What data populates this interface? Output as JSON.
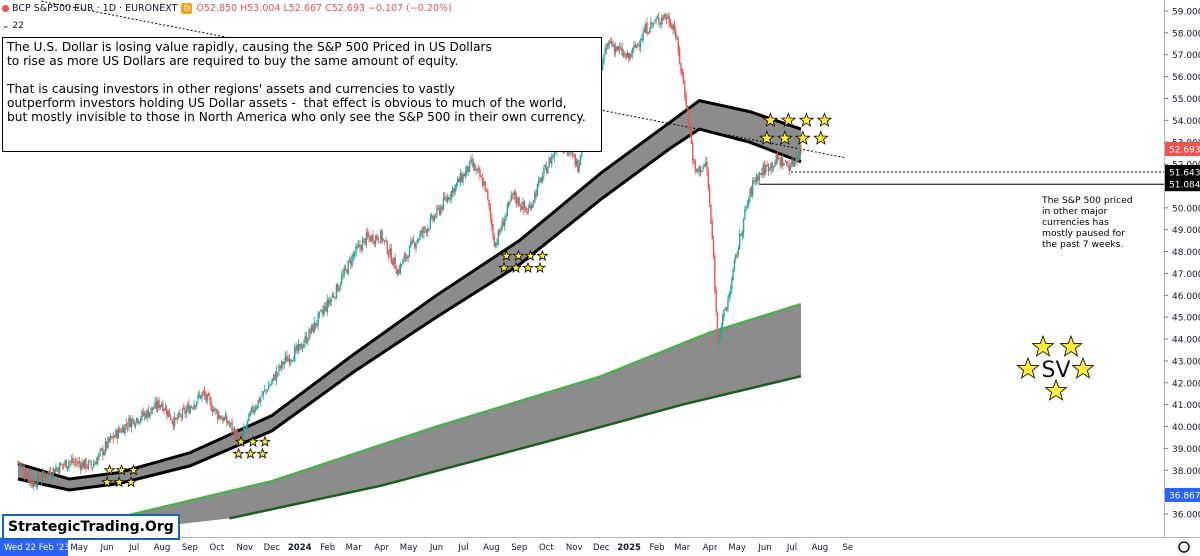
{
  "header": {
    "symbol": "BCP S&P500 EUR · 1D · EURONEXT",
    "flag_letter": "D",
    "ohlc": "O52.850 H53.004 L52.667 C52.693 −0.107 (−0.20%)",
    "indicator_value": "22"
  },
  "annotation": {
    "paragraph1": "The U.S. Dollar is losing value rapidly, causing the S&P 500 Priced in US Dollars\nto rise as more US Dollars are required to buy the same amount of equity.",
    "paragraph2": "That is causing investors in other regions' assets and currencies to vastly\noutperform investors holding US Dollar assets -  that effect is obvious to much of the world,\nbut mostly invisible to those in North America who only see the S&P 500 in their own currency."
  },
  "side_note": "The S&P 500 priced in other major currencies has mostly paused for the past 7 weeks.",
  "watermark": "StrategicTrading.Org",
  "sv_label": "SV",
  "colors": {
    "up": "#26a69a",
    "down": "#ef5350",
    "band_fill": "#8c8c8c",
    "band_edge": "#000000",
    "long_band_edge_top": "#4caf50",
    "long_band_edge_bottom": "#1b5e20",
    "star": "#ffeb3b",
    "price_tag_red": "#ef5350",
    "price_tag_black": "#000000",
    "price_tag_blue": "#2962ff"
  },
  "chart_data": {
    "type": "candlestick",
    "title": "BCP S&P500 EUR · 1D · EURONEXT",
    "y_axis": {
      "ticks": [
        "36.000",
        "37.000",
        "38.000",
        "39.000",
        "40.000",
        "41.000",
        "42.000",
        "43.000",
        "44.000",
        "45.000",
        "46.000",
        "47.000",
        "48.000",
        "49.000",
        "50.000",
        "51.000",
        "52.000",
        "53.000",
        "54.000",
        "55.000",
        "56.000",
        "57.000",
        "58.000",
        "59.000"
      ],
      "range": [
        35.75,
        59.45
      ]
    },
    "x_axis": {
      "first_label": "Wed 22 Feb '23",
      "ticks": [
        "May",
        "Jun",
        "Jul",
        "Aug",
        "Sep",
        "Oct",
        "Nov",
        "Dec",
        "2024",
        "Feb",
        "Mar",
        "Apr",
        "May",
        "Jun",
        "Jul",
        "Aug",
        "Sep",
        "Oct",
        "Nov",
        "Dec",
        "2025",
        "Feb",
        "Mar",
        "Apr",
        "May",
        "Jun",
        "Jul",
        "Aug",
        "Se"
      ]
    },
    "price_tags": [
      {
        "label": "52.693",
        "value": 52.69,
        "style": "red"
      },
      {
        "label": "51.643",
        "value": 51.64,
        "style": "black"
      },
      {
        "label": "51.084",
        "value": 51.08,
        "style": "black"
      },
      {
        "label": "36.867",
        "value": 36.87,
        "style": "blue"
      }
    ],
    "price_path": [
      [
        "2023-02-22",
        38.4
      ],
      [
        "2023-03-10",
        37.4
      ],
      [
        "2023-04-01",
        38.0
      ],
      [
        "2023-04-20",
        38.4
      ],
      [
        "2023-05-15",
        38.2
      ],
      [
        "2023-06-05",
        39.4
      ],
      [
        "2023-06-25",
        40.2
      ],
      [
        "2023-07-15",
        40.6
      ],
      [
        "2023-07-31",
        41.1
      ],
      [
        "2023-08-15",
        40.2
      ],
      [
        "2023-09-01",
        40.9
      ],
      [
        "2023-09-15",
        41.5
      ],
      [
        "2023-10-01",
        40.6
      ],
      [
        "2023-10-15",
        40.1
      ],
      [
        "2023-10-27",
        39.3
      ],
      [
        "2023-11-10",
        40.8
      ],
      [
        "2023-11-30",
        42.0
      ],
      [
        "2023-12-15",
        43.0
      ],
      [
        "2023-12-31",
        43.5
      ],
      [
        "2024-01-20",
        44.8
      ],
      [
        "2024-02-10",
        46.2
      ],
      [
        "2024-02-29",
        47.8
      ],
      [
        "2024-03-15",
        48.6
      ],
      [
        "2024-04-01",
        48.7
      ],
      [
        "2024-04-19",
        47.1
      ],
      [
        "2024-05-05",
        48.3
      ],
      [
        "2024-05-25",
        49.3
      ],
      [
        "2024-06-15",
        50.6
      ],
      [
        "2024-07-10",
        52.0
      ],
      [
        "2024-07-25",
        51.0
      ],
      [
        "2024-08-05",
        48.3
      ],
      [
        "2024-08-25",
        50.6
      ],
      [
        "2024-09-10",
        49.8
      ],
      [
        "2024-09-25",
        51.3
      ],
      [
        "2024-10-15",
        53.0
      ],
      [
        "2024-10-31",
        52.3
      ],
      [
        "2024-11-05",
        51.9
      ],
      [
        "2024-11-20",
        55.2
      ],
      [
        "2024-12-10",
        57.6
      ],
      [
        "2024-12-31",
        56.8
      ],
      [
        "2025-01-20",
        58.2
      ],
      [
        "2025-02-10",
        58.8
      ],
      [
        "2025-02-20",
        58.3
      ],
      [
        "2025-03-05",
        55.0
      ],
      [
        "2025-03-15",
        51.6
      ],
      [
        "2025-03-28",
        52.0
      ],
      [
        "2025-04-05",
        47.6
      ],
      [
        "2025-04-09",
        44.0
      ],
      [
        "2025-04-20",
        45.6
      ],
      [
        "2025-05-01",
        48.0
      ],
      [
        "2025-05-10",
        49.8
      ],
      [
        "2025-05-20",
        51.3
      ],
      [
        "2025-06-01",
        51.8
      ],
      [
        "2025-06-15",
        52.2
      ],
      [
        "2025-06-30",
        51.9
      ],
      [
        "2025-07-11",
        52.69
      ]
    ],
    "medium_band": {
      "upper": [
        [
          "2023-02-22",
          38.3
        ],
        [
          "2023-04-20",
          37.6
        ],
        [
          "2023-06-15",
          37.9
        ],
        [
          "2023-09-01",
          38.8
        ],
        [
          "2023-12-01",
          40.5
        ],
        [
          "2024-03-01",
          43.3
        ],
        [
          "2024-06-01",
          46.0
        ],
        [
          "2024-09-01",
          48.5
        ],
        [
          "2024-12-01",
          51.6
        ],
        [
          "2025-02-15",
          53.9
        ],
        [
          "2025-03-20",
          54.9
        ],
        [
          "2025-05-15",
          54.4
        ],
        [
          "2025-07-11",
          53.6
        ]
      ],
      "lower": [
        [
          "2023-02-22",
          37.6
        ],
        [
          "2023-04-20",
          37.1
        ],
        [
          "2023-06-15",
          37.4
        ],
        [
          "2023-09-01",
          38.2
        ],
        [
          "2023-12-01",
          39.8
        ],
        [
          "2024-03-01",
          42.5
        ],
        [
          "2024-06-01",
          45.0
        ],
        [
          "2024-09-01",
          47.4
        ],
        [
          "2024-12-01",
          50.4
        ],
        [
          "2025-02-15",
          52.7
        ],
        [
          "2025-03-20",
          53.6
        ],
        [
          "2025-05-15",
          53.0
        ],
        [
          "2025-07-11",
          52.1
        ]
      ]
    },
    "long_band": {
      "upper": [
        [
          "2023-06-10",
          35.8
        ],
        [
          "2023-12-01",
          37.5
        ],
        [
          "2024-06-01",
          40.0
        ],
        [
          "2024-12-01",
          42.3
        ],
        [
          "2025-04-01",
          44.3
        ],
        [
          "2025-07-11",
          45.6
        ]
      ],
      "lower": [
        [
          "2023-10-15",
          35.8
        ],
        [
          "2024-04-01",
          37.3
        ],
        [
          "2024-10-01",
          39.3
        ],
        [
          "2025-03-01",
          41.0
        ],
        [
          "2025-07-11",
          42.3
        ]
      ]
    },
    "trend_line": [
      [
        "2023-03-20",
        59.45
      ],
      [
        "2025-08-28",
        52.3
      ]
    ],
    "horizontal_levels": [
      51.64,
      51.08
    ],
    "star_clusters": [
      {
        "date": "2023-06-01",
        "price": 38.0,
        "rows": [
          3,
          3
        ]
      },
      {
        "date": "2023-10-25",
        "price": 39.3,
        "rows": [
          3,
          3
        ]
      },
      {
        "date": "2024-08-15",
        "price": 47.8,
        "rows": [
          4,
          4
        ]
      },
      {
        "date": "2025-06-03",
        "price": 54.0,
        "rows": [
          4,
          4
        ]
      }
    ]
  }
}
